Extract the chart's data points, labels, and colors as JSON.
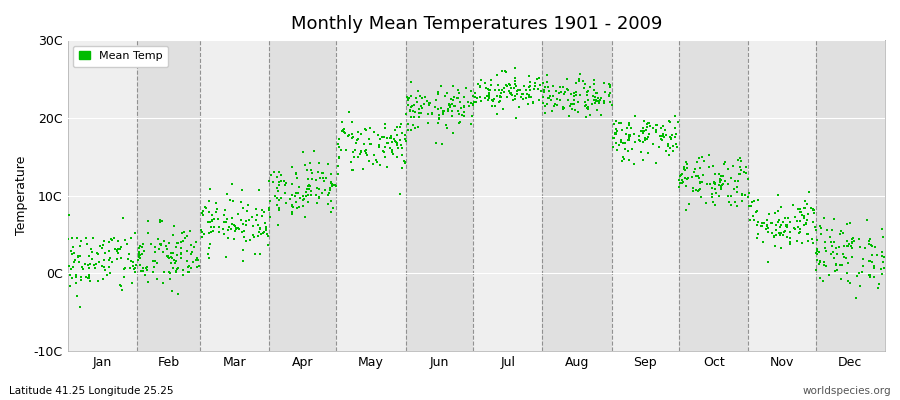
{
  "title": "Monthly Mean Temperatures 1901 - 2009",
  "ylabel": "Temperature",
  "bottom_left_text": "Latitude 41.25 Longitude 25.25",
  "bottom_right_text": "worldspecies.org",
  "legend_label": "Mean Temp",
  "dot_color": "#00BB00",
  "bg_color": "#FFFFFF",
  "plot_bg_color": "#EFEFEF",
  "alt_band_color": "#E0E0E0",
  "ylim": [
    -10,
    30
  ],
  "yticks": [
    -10,
    0,
    10,
    20,
    30
  ],
  "ytick_labels": [
    "-10C",
    "0C",
    "10C",
    "20C",
    "30C"
  ],
  "months": [
    "Jan",
    "Feb",
    "Mar",
    "Apr",
    "May",
    "Jun",
    "Jul",
    "Aug",
    "Sep",
    "Oct",
    "Nov",
    "Dec"
  ],
  "days_in_month": [
    31,
    28,
    31,
    30,
    31,
    30,
    31,
    31,
    30,
    31,
    30,
    31
  ],
  "monthly_means": [
    1.5,
    2.0,
    6.5,
    11.0,
    16.5,
    21.0,
    23.5,
    22.5,
    17.5,
    12.0,
    6.5,
    2.5
  ],
  "monthly_stds": [
    2.2,
    2.2,
    1.8,
    1.8,
    1.8,
    1.5,
    1.2,
    1.2,
    1.5,
    1.8,
    1.8,
    2.2
  ],
  "n_years": 109,
  "seed": 42
}
